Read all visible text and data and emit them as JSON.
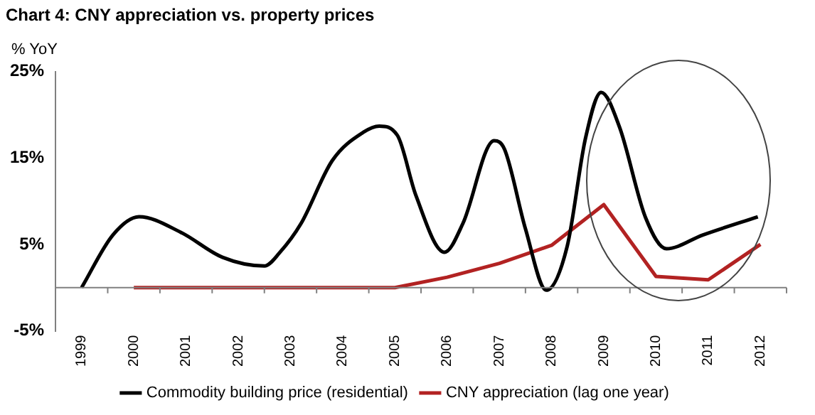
{
  "chart_data": {
    "type": "line",
    "title": "Chart 4: CNY appreciation vs. property prices",
    "ylabel": "% YoY",
    "xlim": [
      1998.5,
      2012.5
    ],
    "xticks": [
      1999,
      2000,
      2001,
      2002,
      2003,
      2004,
      2005,
      2006,
      2007,
      2008,
      2009,
      2010,
      2011,
      2012
    ],
    "ylim": [
      -5,
      25
    ],
    "yticks": [
      {
        "value": -5,
        "label": "-5%"
      },
      {
        "value": 5,
        "label": "5%"
      },
      {
        "value": 15,
        "label": "15%"
      },
      {
        "value": 25,
        "label": "25%"
      }
    ],
    "grid": false,
    "legend": "bottom",
    "marker": "none",
    "line_style": "solid",
    "series": [
      {
        "name": "Commodity building price (residential)",
        "color": "#000000",
        "x": [
          1999,
          1999.6,
          2000.1,
          2000.9,
          2001.7,
          2002.5,
          2002.8,
          2003.2,
          2003.8,
          2004.4,
          2004.7,
          2005.05,
          2005.4,
          2005.95,
          2006.3,
          2006.9,
          2007.1,
          2007.5,
          2007.9,
          2008.3,
          2008.65,
          2008.95,
          2009.3,
          2009.8,
          2010.2,
          2010.9,
          2011.95
        ],
        "values": [
          0,
          6.1,
          8.2,
          6.4,
          3.5,
          2.5,
          4.1,
          7.4,
          14.7,
          18,
          18.7,
          17.6,
          10.7,
          4.1,
          7.4,
          17,
          16,
          6.8,
          -0.3,
          4.8,
          17.3,
          22.6,
          18.6,
          8.1,
          4.5,
          6.1,
          8.2
        ]
      },
      {
        "name": "CNY appreciation (lag one year)",
        "color": "#b22222",
        "x": [
          2000,
          2005,
          2006,
          2007,
          2008,
          2009,
          2010,
          2011,
          2012
        ],
        "values": [
          0,
          0,
          1.2,
          2.8,
          4.9,
          9.6,
          1.3,
          0.9,
          5.0
        ]
      }
    ]
  }
}
